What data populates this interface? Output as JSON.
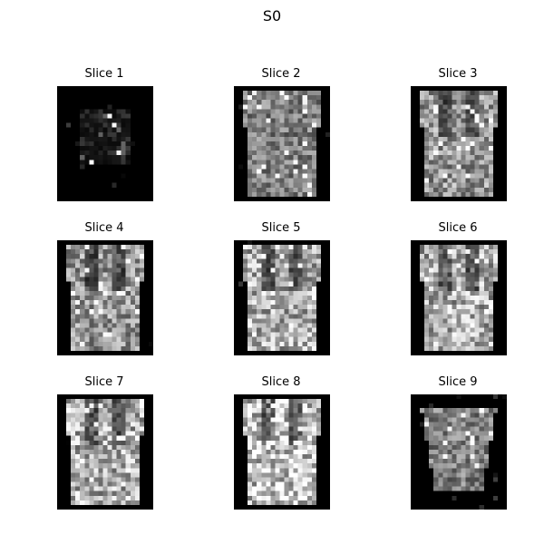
{
  "figure": {
    "title": "S0",
    "panels": [
      {
        "title": "Slice 1",
        "intensity": "very-dark"
      },
      {
        "title": "Slice 2",
        "intensity": "medium"
      },
      {
        "title": "Slice 3",
        "intensity": "medium-bright"
      },
      {
        "title": "Slice 4",
        "intensity": "medium-bright"
      },
      {
        "title": "Slice 5",
        "intensity": "bright"
      },
      {
        "title": "Slice 6",
        "intensity": "bright"
      },
      {
        "title": "Slice 7",
        "intensity": "bright"
      },
      {
        "title": "Slice 8",
        "intensity": "very-bright"
      },
      {
        "title": "Slice 9",
        "intensity": "medium"
      }
    ],
    "colormap": "gray",
    "background_color": "#000000"
  }
}
